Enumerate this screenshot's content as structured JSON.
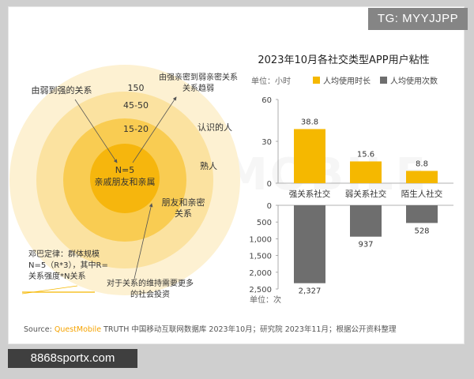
{
  "watermark_top": "TG: MYYJJPP",
  "watermark_bottom": "8868sportx.com",
  "background_watermark": "QUESTMOBILE",
  "source": {
    "prefix": "Source: ",
    "brand": "QuestMobile",
    "rest": " TRUTH 中国移动互联网数据库 2023年10月；研究院 2023年11月；根据公开资料整理"
  },
  "circles": {
    "inner_n": "N=5",
    "inner_label": "亲戚朋友和亲属",
    "ring_15_20": "15-20",
    "ring_45_50": "45-50",
    "ring_150": "150",
    "strong_to_weak": "由弱到强的关系",
    "weak_to_strong_1": "由强亲密到弱亲密关系",
    "weak_to_strong_2": "关系趋弱",
    "acquaintances": "认识的人",
    "familiar": "熟人",
    "close_friends_1": "朋友和亲密",
    "close_friends_2": "关系",
    "dunbar_1": "邓巴定律：群体规模",
    "dunbar_2": "N=5（R*3），其中R=",
    "dunbar_3": "关系强度*N关系",
    "investment_1": "对于关系的维持需要更多",
    "investment_2": "的社会投资"
  },
  "chart_data": {
    "type": "bar",
    "title": "2023年10月各社交类型APP用户粘性",
    "categories": [
      "强关系社交",
      "弱关系社交",
      "陌生人社交"
    ],
    "series": [
      {
        "name": "人均使用时长",
        "values": [
          38.8,
          15.6,
          8.8
        ],
        "color": "#f5b800",
        "unit": "单位：小时"
      },
      {
        "name": "人均使用次数",
        "values": [
          2327,
          937,
          528
        ],
        "color": "#6e6e6e",
        "unit": "单位：次"
      }
    ],
    "value_labels_top": [
      "38.8",
      "15.6",
      "8.8"
    ],
    "value_labels_bottom": [
      "2,327",
      "937",
      "528"
    ],
    "top_axis": {
      "ylim": [
        0,
        60
      ],
      "ticks": [
        "0",
        "30",
        "60"
      ]
    },
    "bottom_axis": {
      "ylim": [
        0,
        2500
      ],
      "ticks": [
        "0",
        "500",
        "1,000",
        "1,500",
        "2,000",
        "2,500"
      ],
      "inverted": true
    },
    "unit_top": "单位：小时",
    "unit_bottom": "单位：次"
  }
}
